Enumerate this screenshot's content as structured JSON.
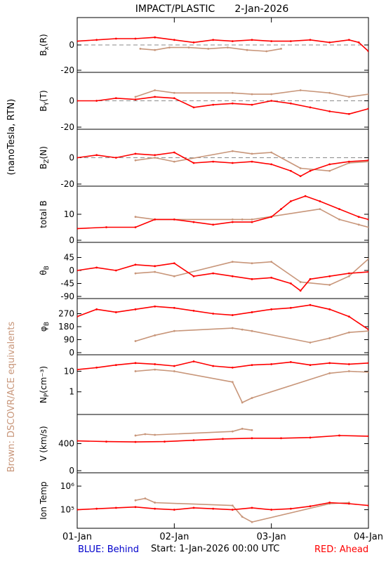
{
  "header": {
    "instrument": "IMPACT/PLASTIC",
    "date": "2-Jan-2026"
  },
  "left_labels": {
    "units": "(nanoTesla, RTN)",
    "brown_note": "Brown: DSCOVR/ACE equivalents"
  },
  "footer": {
    "behind": "BLUE: Behind",
    "start": "Start:  1-Jan-2026 00:00 UTC",
    "ahead": "RED: Ahead"
  },
  "colors": {
    "ahead": "#ff0000",
    "dscovr": "#c8967a",
    "behind": "#0000cc",
    "axis": "#000000"
  },
  "chart_data": {
    "type": "line",
    "x_tick_labels": [
      "01-Jan",
      "02-Jan",
      "03-Jan",
      "04-Jan"
    ],
    "x_range_days": [
      0,
      3
    ],
    "panels": [
      {
        "id": "bx",
        "ylabel": "B",
        "ysub": "x",
        "ysuffix": "(R)",
        "ylim": [
          -20,
          20
        ],
        "ticks": [
          {
            "v": 0,
            "label": "0"
          },
          {
            "v": -20,
            "label": "-20"
          }
        ],
        "zero_line": true,
        "ahead": {
          "x": [
            0,
            0.2,
            0.4,
            0.6,
            0.8,
            1.0,
            1.2,
            1.4,
            1.6,
            1.8,
            2.0,
            2.2,
            2.4,
            2.6,
            2.8,
            2.9,
            3.0
          ],
          "y": [
            3,
            4,
            5,
            5,
            6,
            4,
            2,
            4,
            3,
            4,
            3,
            3,
            4,
            2,
            4,
            2,
            -5
          ]
        },
        "dscovr": {
          "x": [
            0.65,
            0.8,
            0.95,
            1.15,
            1.35,
            1.55,
            1.75,
            1.95,
            2.1
          ],
          "y": [
            -3,
            -4,
            -2,
            -2,
            -3,
            -2,
            -4,
            -5,
            -3
          ]
        }
      },
      {
        "id": "by",
        "ylabel": "B",
        "ysub": "Y",
        "ysuffix": "(T)",
        "ylim": [
          -20,
          20
        ],
        "ticks": [
          {
            "v": 0,
            "label": "0"
          },
          {
            "v": -20,
            "label": "-20"
          }
        ],
        "zero_line": true,
        "ahead": {
          "x": [
            0,
            0.2,
            0.4,
            0.6,
            0.8,
            1.0,
            1.2,
            1.4,
            1.6,
            1.8,
            2.0,
            2.2,
            2.4,
            2.6,
            2.8,
            3.0
          ],
          "y": [
            0,
            0,
            2,
            1,
            3,
            2,
            -5,
            -3,
            -2,
            -3,
            0,
            -2,
            -5,
            -8,
            -10,
            -6
          ]
        },
        "dscovr": {
          "x": [
            0.6,
            0.8,
            1.0,
            1.6,
            1.8,
            2.0,
            2.3,
            2.6,
            2.8,
            3.0
          ],
          "y": [
            3,
            8,
            6,
            6,
            5,
            5,
            8,
            6,
            3,
            5
          ]
        }
      },
      {
        "id": "bz",
        "ylabel": "B",
        "ysub": "Z",
        "ysuffix": "(N)",
        "ylim": [
          -20,
          20
        ],
        "ticks": [
          {
            "v": 0,
            "label": "0"
          },
          {
            "v": -20,
            "label": "-20"
          }
        ],
        "zero_line": true,
        "ahead": {
          "x": [
            0,
            0.2,
            0.4,
            0.6,
            0.8,
            1.0,
            1.2,
            1.4,
            1.6,
            1.8,
            2.0,
            2.2,
            2.3,
            2.4,
            2.6,
            2.8,
            3.0
          ],
          "y": [
            0,
            2,
            0,
            3,
            2,
            4,
            -4,
            -3,
            -4,
            -3,
            -5,
            -10,
            -14,
            -10,
            -5,
            -3,
            -2
          ]
        },
        "dscovr": {
          "x": [
            0.6,
            0.8,
            1.0,
            1.6,
            1.8,
            2.0,
            2.3,
            2.6,
            2.8,
            3.0
          ],
          "y": [
            -2,
            0,
            -3,
            5,
            3,
            4,
            -8,
            -10,
            -4,
            -3
          ]
        }
      },
      {
        "id": "bt",
        "ylabel": "total B",
        "ysub": "",
        "ysuffix": "",
        "ylim": [
          0,
          20
        ],
        "ticks": [
          {
            "v": 10,
            "label": "10"
          },
          {
            "v": 0,
            "label": "0"
          }
        ],
        "zero_line": false,
        "ahead": {
          "x": [
            0,
            0.3,
            0.6,
            0.8,
            1.0,
            1.2,
            1.4,
            1.6,
            1.8,
            2.0,
            2.1,
            2.2,
            2.35,
            2.5,
            2.7,
            2.9,
            3.0
          ],
          "y": [
            4.5,
            5,
            5,
            8,
            8,
            7,
            6,
            7,
            7,
            9,
            12,
            15,
            17,
            15,
            12,
            9,
            8
          ]
        },
        "dscovr": {
          "x": [
            0.6,
            0.8,
            1.6,
            1.7,
            1.8,
            2.5,
            2.7,
            2.9,
            3.0
          ],
          "y": [
            9,
            8,
            8,
            8,
            8,
            12,
            8,
            6,
            5
          ]
        }
      },
      {
        "id": "theta",
        "ylabel": "θ",
        "ysub": "B",
        "ysuffix": "",
        "ylim": [
          -90,
          90
        ],
        "ticks": [
          {
            "v": 45,
            "label": "45"
          },
          {
            "v": 0,
            "label": "0"
          },
          {
            "v": -45,
            "label": "-45"
          },
          {
            "v": -90,
            "label": "-90"
          }
        ],
        "zero_line": false,
        "ahead": {
          "x": [
            0,
            0.2,
            0.4,
            0.6,
            0.8,
            1.0,
            1.2,
            1.4,
            1.6,
            1.8,
            2.0,
            2.2,
            2.3,
            2.4,
            2.6,
            2.8,
            3.0
          ],
          "y": [
            0,
            10,
            0,
            20,
            15,
            25,
            -20,
            -10,
            -20,
            -30,
            -25,
            -45,
            -70,
            -30,
            -20,
            -10,
            -5
          ]
        },
        "dscovr": {
          "x": [
            0.6,
            0.8,
            1.0,
            1.6,
            1.8,
            2.0,
            2.3,
            2.6,
            2.8,
            3.0
          ],
          "y": [
            -10,
            -5,
            -20,
            30,
            25,
            30,
            -40,
            -50,
            -20,
            40
          ]
        }
      },
      {
        "id": "phi",
        "ylabel": "φ",
        "ysub": "B",
        "ysuffix": "",
        "ylim": [
          0,
          360
        ],
        "ticks": [
          {
            "v": 270,
            "label": "270"
          },
          {
            "v": 180,
            "label": "180"
          },
          {
            "v": 90,
            "label": "90"
          },
          {
            "v": 0,
            "label": "0"
          }
        ],
        "zero_line": false,
        "ahead": {
          "x": [
            0,
            0.2,
            0.4,
            0.6,
            0.8,
            1.0,
            1.2,
            1.4,
            1.6,
            1.8,
            2.0,
            2.2,
            2.4,
            2.6,
            2.8,
            3.0
          ],
          "y": [
            250,
            300,
            280,
            300,
            320,
            310,
            290,
            270,
            260,
            280,
            300,
            310,
            330,
            300,
            250,
            160
          ]
        },
        "dscovr": {
          "x": [
            0.6,
            0.8,
            1.0,
            1.6,
            1.7,
            1.8,
            2.4,
            2.6,
            2.8,
            3.0
          ],
          "y": [
            80,
            120,
            150,
            170,
            160,
            150,
            70,
            100,
            140,
            150
          ]
        }
      },
      {
        "id": "np",
        "ylabel": "N",
        "ysub": "P",
        "ysuffix": "(cm⁻³)",
        "ylim": [
          0.1,
          50
        ],
        "log": true,
        "ticks": [
          {
            "v": 10,
            "label": "10"
          },
          {
            "v": 1,
            "label": "1"
          }
        ],
        "zero_line": false,
        "ahead": {
          "x": [
            0,
            0.2,
            0.4,
            0.6,
            0.8,
            1.0,
            1.2,
            1.4,
            1.6,
            1.8,
            2.0,
            2.2,
            2.4,
            2.6,
            2.8,
            3.0
          ],
          "y": [
            12,
            15,
            20,
            25,
            22,
            18,
            30,
            18,
            15,
            20,
            22,
            28,
            20,
            25,
            22,
            25
          ]
        },
        "dscovr": {
          "x": [
            0.6,
            0.8,
            1.0,
            1.6,
            1.7,
            1.8,
            2.6,
            2.8,
            3.0
          ],
          "y": [
            10,
            12,
            10,
            3,
            0.3,
            0.5,
            8,
            10,
            9
          ]
        }
      },
      {
        "id": "v",
        "ylabel": "V (km/s)",
        "ysub": "",
        "ysuffix": "",
        "ylim": [
          0,
          800
        ],
        "ticks": [
          {
            "v": 400,
            "label": "400"
          },
          {
            "v": 0,
            "label": "0"
          }
        ],
        "zero_line": false,
        "ahead": {
          "x": [
            0,
            0.3,
            0.6,
            0.9,
            1.2,
            1.5,
            1.8,
            2.1,
            2.4,
            2.7,
            3.0
          ],
          "y": [
            440,
            430,
            425,
            430,
            450,
            470,
            480,
            480,
            490,
            520,
            510
          ]
        },
        "dscovr": {
          "x": [
            0.6,
            0.7,
            0.8,
            1.6,
            1.7,
            1.8
          ],
          "y": [
            520,
            540,
            530,
            580,
            620,
            600
          ]
        }
      },
      {
        "id": "temp",
        "ylabel": "Ion Temp",
        "ysub": "",
        "ysuffix": "",
        "ylim": [
          20000,
          3000000
        ],
        "log": true,
        "ticks": [
          {
            "v": 1000000,
            "label": "10⁶"
          },
          {
            "v": 100000,
            "label": "10⁵"
          }
        ],
        "zero_line": false,
        "ahead": {
          "x": [
            0,
            0.2,
            0.4,
            0.6,
            0.8,
            1.0,
            1.2,
            1.4,
            1.6,
            1.8,
            2.0,
            2.2,
            2.4,
            2.6,
            2.8,
            3.0
          ],
          "y": [
            100000,
            110000,
            120000,
            130000,
            110000,
            100000,
            120000,
            110000,
            100000,
            120000,
            100000,
            110000,
            140000,
            200000,
            180000,
            150000
          ]
        },
        "dscovr": {
          "x": [
            0.6,
            0.7,
            0.8,
            1.6,
            1.7,
            1.8,
            2.6,
            2.8
          ],
          "y": [
            250000,
            300000,
            200000,
            150000,
            50000,
            30000,
            180000,
            200000
          ]
        }
      }
    ]
  }
}
